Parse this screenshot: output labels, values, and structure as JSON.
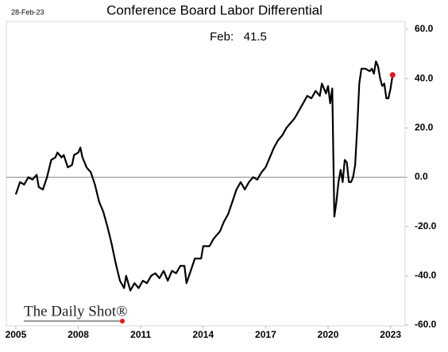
{
  "chart_data": {
    "type": "line",
    "title": "Conference Board Labor Differential",
    "date_label": "28-Feb-23",
    "annotation": "Feb:   41.5",
    "source": "The Daily Shot®",
    "xlim": [
      2004.85,
      2023.7
    ],
    "xticks": [
      2005,
      2008,
      2011,
      2014,
      2017,
      2020,
      2023
    ],
    "ylim": [
      -60,
      60
    ],
    "yticks": [
      {
        "value": -60,
        "label": "-60.0"
      },
      {
        "value": -40,
        "label": "-40.0"
      },
      {
        "value": -20,
        "label": "-20.0"
      },
      {
        "value": 0,
        "label": "0.0"
      },
      {
        "value": 20,
        "label": "20.0"
      },
      {
        "value": 40,
        "label": "40.0"
      },
      {
        "value": 60,
        "label": "60.0"
      }
    ],
    "zero_line": true,
    "last_point_color": "#e8141c",
    "series": [
      {
        "name": "Labor Differential",
        "color": "#000000",
        "x": [
          2005.0,
          2005.2,
          2005.4,
          2005.6,
          2005.8,
          2006.0,
          2006.1,
          2006.3,
          2006.5,
          2006.7,
          2006.9,
          2007.0,
          2007.2,
          2007.3,
          2007.5,
          2007.7,
          2007.8,
          2008.0,
          2008.1,
          2008.2,
          2008.4,
          2008.6,
          2008.8,
          2009.0,
          2009.2,
          2009.4,
          2009.6,
          2009.8,
          2010.0,
          2010.2,
          2010.3,
          2010.5,
          2010.7,
          2010.9,
          2011.1,
          2011.3,
          2011.5,
          2011.7,
          2011.9,
          2012.1,
          2012.3,
          2012.5,
          2012.7,
          2012.9,
          2013.1,
          2013.2,
          2013.4,
          2013.6,
          2013.9,
          2014.0,
          2014.3,
          2014.5,
          2014.8,
          2015.0,
          2015.2,
          2015.4,
          2015.6,
          2015.8,
          2016.0,
          2016.2,
          2016.4,
          2016.6,
          2016.8,
          2017.0,
          2017.2,
          2017.4,
          2017.6,
          2017.8,
          2018.0,
          2018.2,
          2018.4,
          2018.6,
          2018.8,
          2019.0,
          2019.2,
          2019.4,
          2019.6,
          2019.7,
          2019.9,
          2020.0,
          2020.1,
          2020.2,
          2020.3,
          2020.4,
          2020.5,
          2020.6,
          2020.7,
          2020.8,
          2020.9,
          2021.0,
          2021.1,
          2021.2,
          2021.3,
          2021.4,
          2021.5,
          2021.6,
          2021.8,
          2022.0,
          2022.1,
          2022.2,
          2022.3,
          2022.4,
          2022.5,
          2022.6,
          2022.7,
          2022.8,
          2022.9,
          2023.0,
          2023.1
        ],
        "values": [
          -7,
          -2,
          -3,
          0,
          -1,
          1,
          -4,
          -5,
          0,
          7,
          8,
          10,
          8,
          9,
          4,
          5,
          9,
          10,
          12,
          8,
          4,
          2,
          -3,
          -10,
          -14,
          -20,
          -27,
          -35,
          -42,
          -45,
          -40,
          -46,
          -43,
          -45,
          -42,
          -43,
          -40,
          -39,
          -41,
          -38,
          -42,
          -38,
          -39,
          -36,
          -36,
          -43,
          -38,
          -33,
          -33,
          -28,
          -28,
          -25,
          -22,
          -18,
          -15,
          -10,
          -5,
          -2,
          -5,
          -2,
          0,
          -1,
          2,
          4,
          8,
          12,
          15,
          17,
          20,
          22,
          24,
          27,
          30,
          33,
          32,
          35,
          33,
          38,
          34,
          37,
          30,
          36,
          -16,
          -10,
          -2,
          3,
          -2,
          7,
          6,
          -2,
          -2,
          0,
          5,
          20,
          38,
          44,
          44,
          43,
          44,
          42,
          47,
          45,
          40,
          37,
          38,
          32,
          32,
          36,
          41.5
        ]
      }
    ]
  }
}
